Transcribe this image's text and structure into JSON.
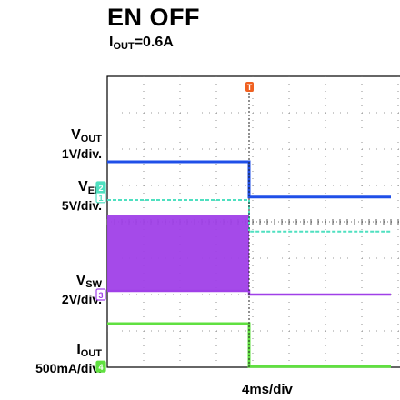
{
  "header": {
    "title": "EN OFF",
    "subtitle_prefix": "I",
    "subtitle_sub": "OUT",
    "subtitle_value": "=0.6A"
  },
  "channels": [
    {
      "id": "vout",
      "name": "V",
      "sub": "OUT",
      "scale": "1V/div.",
      "marker": "1",
      "color": "#4fe0c0",
      "trace_color": "#1f4fe8"
    },
    {
      "id": "ven",
      "name": "V",
      "sub": "EN",
      "scale": "5V/div.",
      "marker": "2",
      "color": "#4fe0c0",
      "trace_color": "#4fe0c0"
    },
    {
      "id": "vsw",
      "name": "V",
      "sub": "SW",
      "scale": "2V/div.",
      "marker": "3",
      "color": "#a040e8",
      "trace_color": "#a040e8"
    },
    {
      "id": "iout",
      "name": "I",
      "sub": "OUT",
      "scale": "500mA/div.",
      "marker": "4",
      "color": "#60e040",
      "trace_color": "#60e040"
    }
  ],
  "trigger": {
    "marker": "T",
    "color": "#f06020"
  },
  "chart_data": {
    "type": "line",
    "title": "EN OFF",
    "subtitle": "IOUT=0.6A",
    "xlabel": "4ms/div",
    "grid": true,
    "divisions": {
      "x": 10,
      "y": 8
    },
    "series": [
      {
        "name": "VOUT",
        "values": [
          [
            0,
            5.65
          ],
          [
            3.9,
            5.65
          ],
          [
            3.9,
            4.68
          ],
          [
            7.8,
            4.68
          ]
        ]
      },
      {
        "name": "VEN",
        "values": [
          [
            0,
            4.6
          ],
          [
            3.9,
            4.6
          ],
          [
            3.9,
            3.73
          ],
          [
            7.8,
            3.73
          ]
        ]
      },
      {
        "name": "VSW",
        "values": [
          [
            0,
            2.1
          ],
          [
            3.9,
            2.1
          ],
          [
            3.9,
            2.0
          ],
          [
            7.8,
            2.0
          ]
        ],
        "switching_band": [
          [
            0,
            2.1
          ],
          [
            3.9,
            4.2
          ]
        ]
      },
      {
        "name": "IOUT",
        "values": [
          [
            0,
            1.2
          ],
          [
            3.9,
            1.2
          ],
          [
            3.9,
            0.02
          ],
          [
            7.8,
            0.02
          ]
        ]
      }
    ],
    "trigger_x": 3.9
  }
}
